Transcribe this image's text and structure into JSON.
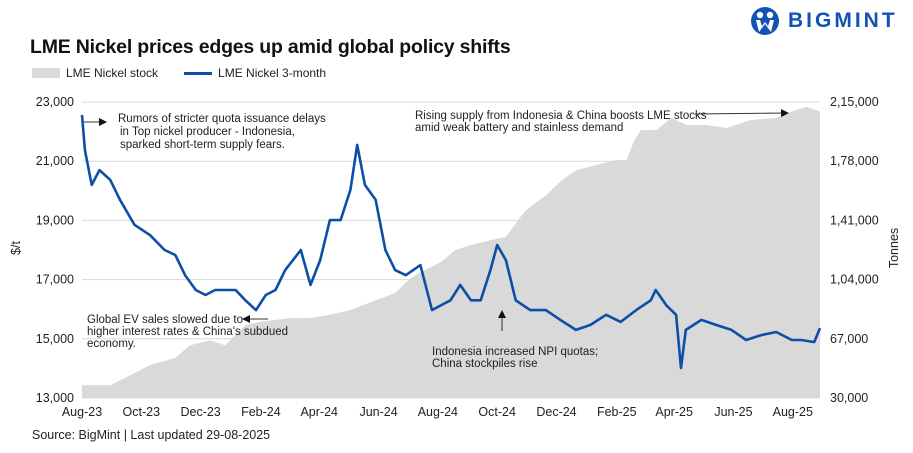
{
  "title": "LME Nickel prices edges up amid global policy shifts",
  "logo": {
    "text": "BIGMINT",
    "color": "#1352b5"
  },
  "source": "Source: BigMint | Last updated 29-08-2025",
  "colors": {
    "price_line": "#0d4ea6",
    "stock_area": "#d9d9d9",
    "grid": "#d9d9d9"
  },
  "chart_data": {
    "type": "line+area",
    "title": "LME Nickel prices edges up amid global policy shifts",
    "legend": {
      "placement": "top-left",
      "entries": [
        "LME Nickel stock",
        "LME Nickel 3-month"
      ]
    },
    "grid": true,
    "x_range": [
      "2023-08-01",
      "2025-08-29"
    ],
    "x_ticks": [
      {
        "date": "2023-08-01",
        "label": "Aug-23"
      },
      {
        "date": "2023-10-01",
        "label": "Oct-23"
      },
      {
        "date": "2023-12-01",
        "label": "Dec-23"
      },
      {
        "date": "2024-02-01",
        "label": "Feb-24"
      },
      {
        "date": "2024-04-01",
        "label": "Apr-24"
      },
      {
        "date": "2024-06-01",
        "label": "Jun-24"
      },
      {
        "date": "2024-08-01",
        "label": "Aug-24"
      },
      {
        "date": "2024-10-01",
        "label": "Oct-24"
      },
      {
        "date": "2024-12-01",
        "label": "Dec-24"
      },
      {
        "date": "2025-02-01",
        "label": "Feb-25"
      },
      {
        "date": "2025-04-01",
        "label": "Apr-25"
      },
      {
        "date": "2025-06-01",
        "label": "Jun-25"
      },
      {
        "date": "2025-08-01",
        "label": "Aug-25"
      }
    ],
    "y_left": {
      "label": "$/t",
      "range": [
        13000,
        23000
      ],
      "ticks": [
        {
          "value": 13000,
          "label": "13,000"
        },
        {
          "value": 15000,
          "label": "15,000"
        },
        {
          "value": 17000,
          "label": "17,000"
        },
        {
          "value": 19000,
          "label": "19,000"
        },
        {
          "value": 21000,
          "label": "21,000"
        },
        {
          "value": 23000,
          "label": "23,000"
        }
      ]
    },
    "y_right": {
      "label": "Tonnes",
      "range": [
        30000,
        215000
      ],
      "ticks": [
        {
          "value": 30000,
          "label": "30,000"
        },
        {
          "value": 67000,
          "label": "67,000"
        },
        {
          "value": 104000,
          "label": "1,04,000"
        },
        {
          "value": 141000,
          "label": "1,41,000"
        },
        {
          "value": 178000,
          "label": "1,78,000"
        },
        {
          "value": 215000,
          "label": "2,15,000"
        }
      ]
    },
    "series": [
      {
        "name": "LME Nickel stock",
        "type": "area",
        "axis": "right",
        "points": [
          [
            "2023-08-01",
            38000
          ],
          [
            "2023-08-30",
            38000
          ],
          [
            "2023-09-19",
            44000
          ],
          [
            "2023-10-10",
            50600
          ],
          [
            "2023-11-05",
            55000
          ],
          [
            "2023-11-20",
            63000
          ],
          [
            "2023-12-11",
            66000
          ],
          [
            "2023-12-26",
            63000
          ],
          [
            "2024-01-05",
            69000
          ],
          [
            "2024-01-16",
            75600
          ],
          [
            "2024-01-31",
            77500
          ],
          [
            "2024-03-02",
            80000
          ],
          [
            "2024-03-23",
            80000
          ],
          [
            "2024-04-12",
            82000
          ],
          [
            "2024-05-03",
            85000
          ],
          [
            "2024-05-29",
            91000
          ],
          [
            "2024-06-18",
            95600
          ],
          [
            "2024-07-04",
            105000
          ],
          [
            "2024-07-19",
            110000
          ],
          [
            "2024-08-04",
            115000
          ],
          [
            "2024-08-19",
            122500
          ],
          [
            "2024-09-04",
            125600
          ],
          [
            "2024-09-25",
            128750
          ],
          [
            "2024-10-10",
            130600
          ],
          [
            "2024-10-26",
            144000
          ],
          [
            "2024-10-31",
            147500
          ],
          [
            "2024-11-21",
            157000
          ],
          [
            "2024-12-06",
            166000
          ],
          [
            "2024-12-22",
            172500
          ],
          [
            "2025-01-11",
            175600
          ],
          [
            "2025-01-31",
            178750
          ],
          [
            "2025-02-11",
            178750
          ],
          [
            "2025-02-19",
            191000
          ],
          [
            "2025-02-26",
            197500
          ],
          [
            "2025-03-14",
            197500
          ],
          [
            "2025-03-29",
            205000
          ],
          [
            "2025-04-14",
            200600
          ],
          [
            "2025-05-04",
            200600
          ],
          [
            "2025-05-25",
            198750
          ],
          [
            "2025-06-19",
            203750
          ],
          [
            "2025-07-15",
            205000
          ],
          [
            "2025-08-04",
            210000
          ],
          [
            "2025-08-15",
            212000
          ],
          [
            "2025-08-29",
            209000
          ]
        ]
      },
      {
        "name": "LME Nickel 3-month",
        "type": "line",
        "axis": "left",
        "points": [
          [
            "2023-08-01",
            22560
          ],
          [
            "2023-08-04",
            21380
          ],
          [
            "2023-08-11",
            20200
          ],
          [
            "2023-08-19",
            20700
          ],
          [
            "2023-08-30",
            20370
          ],
          [
            "2023-09-09",
            19700
          ],
          [
            "2023-09-24",
            18850
          ],
          [
            "2023-10-10",
            18500
          ],
          [
            "2023-10-25",
            18000
          ],
          [
            "2023-11-05",
            17830
          ],
          [
            "2023-11-15",
            17150
          ],
          [
            "2023-11-26",
            16650
          ],
          [
            "2023-12-06",
            16480
          ],
          [
            "2023-12-16",
            16650
          ],
          [
            "2024-01-06",
            16650
          ],
          [
            "2024-01-16",
            16300
          ],
          [
            "2024-01-27",
            15970
          ],
          [
            "2024-02-06",
            16480
          ],
          [
            "2024-02-16",
            16650
          ],
          [
            "2024-02-26",
            17320
          ],
          [
            "2024-03-13",
            18000
          ],
          [
            "2024-03-23",
            16820
          ],
          [
            "2024-04-02",
            17660
          ],
          [
            "2024-04-12",
            19010
          ],
          [
            "2024-04-23",
            19010
          ],
          [
            "2024-05-03",
            20030
          ],
          [
            "2024-05-10",
            21550
          ],
          [
            "2024-05-18",
            20200
          ],
          [
            "2024-05-29",
            19700
          ],
          [
            "2024-06-08",
            18000
          ],
          [
            "2024-06-18",
            17320
          ],
          [
            "2024-06-29",
            17150
          ],
          [
            "2024-07-14",
            17490
          ],
          [
            "2024-07-26",
            15970
          ],
          [
            "2024-08-04",
            16130
          ],
          [
            "2024-08-14",
            16300
          ],
          [
            "2024-08-24",
            16820
          ],
          [
            "2024-09-04",
            16300
          ],
          [
            "2024-09-14",
            16300
          ],
          [
            "2024-09-24",
            17320
          ],
          [
            "2024-10-01",
            18170
          ],
          [
            "2024-10-10",
            17660
          ],
          [
            "2024-10-20",
            16300
          ],
          [
            "2024-11-04",
            15970
          ],
          [
            "2024-11-20",
            15970
          ],
          [
            "2024-12-05",
            15640
          ],
          [
            "2024-12-21",
            15300
          ],
          [
            "2025-01-05",
            15470
          ],
          [
            "2025-01-21",
            15810
          ],
          [
            "2025-02-05",
            15570
          ],
          [
            "2025-02-21",
            15970
          ],
          [
            "2025-03-08",
            16300
          ],
          [
            "2025-03-13",
            16650
          ],
          [
            "2025-03-24",
            16130
          ],
          [
            "2025-04-03",
            15810
          ],
          [
            "2025-04-08",
            14010
          ],
          [
            "2025-04-13",
            15300
          ],
          [
            "2025-04-29",
            15640
          ],
          [
            "2025-05-14",
            15470
          ],
          [
            "2025-05-30",
            15300
          ],
          [
            "2025-06-14",
            14960
          ],
          [
            "2025-06-30",
            15130
          ],
          [
            "2025-07-15",
            15230
          ],
          [
            "2025-07-31",
            14960
          ],
          [
            "2025-08-10",
            14960
          ],
          [
            "2025-08-23",
            14890
          ],
          [
            "2025-08-29",
            15360
          ]
        ]
      }
    ],
    "annotations": [
      {
        "lines": [
          "Rumors of stricter quota issuance delays",
          "in Top nickel producer - Indonesia,",
          "sparked short-term supply fears."
        ]
      },
      {
        "lines": [
          "Global EV sales slowed due to",
          "higher interest rates & China's subdued",
          "economy."
        ]
      },
      {
        "lines": [
          "Indonesia increased NPI quotas;",
          "China stockpiles rise"
        ]
      },
      {
        "lines": [
          "Rising supply from Indonesia & China boosts LME stocks",
          "amid weak battery and stainless demand"
        ]
      }
    ]
  }
}
